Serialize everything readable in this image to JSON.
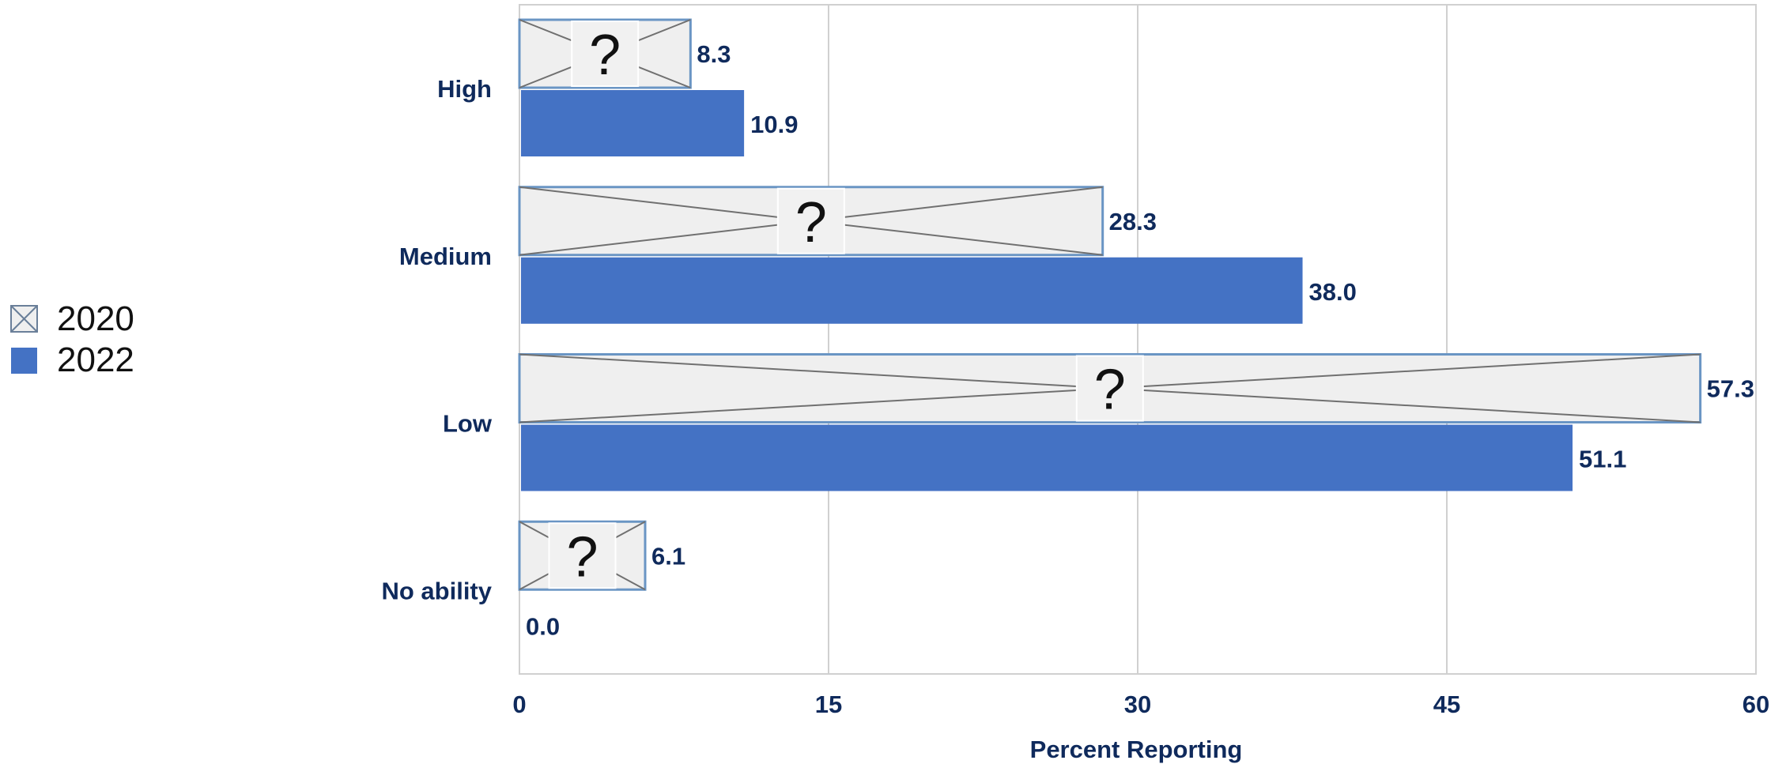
{
  "chart_data": {
    "type": "bar",
    "orientation": "horizontal",
    "categories": [
      "High",
      "Medium",
      "Low",
      "No ability"
    ],
    "series": [
      {
        "name": "2020",
        "values": [
          8.3,
          28.3,
          57.3,
          6.1
        ],
        "color": "#efefef",
        "border_color": "#6a95c4",
        "pattern": "crossed-placeholder",
        "marker_text": "?"
      },
      {
        "name": "2022",
        "values": [
          10.9,
          38.0,
          51.1,
          0.0
        ],
        "color": "#4472c4"
      }
    ],
    "data_labels": {
      "2020": [
        "8.3",
        "28.3",
        "57.3",
        "6.1"
      ],
      "2022": [
        "10.9",
        "38.0",
        "51.1",
        "0.0"
      ]
    },
    "xlabel": "Percent Reporting",
    "ylabel": "",
    "title": "",
    "xlim": [
      0,
      60
    ],
    "x_ticks": [
      "0",
      "15",
      "30",
      "45",
      "60"
    ],
    "grid": "vertical",
    "legend_position": "left",
    "text_color": "#0f2a5c",
    "grid_color": "#d0d0d0"
  }
}
